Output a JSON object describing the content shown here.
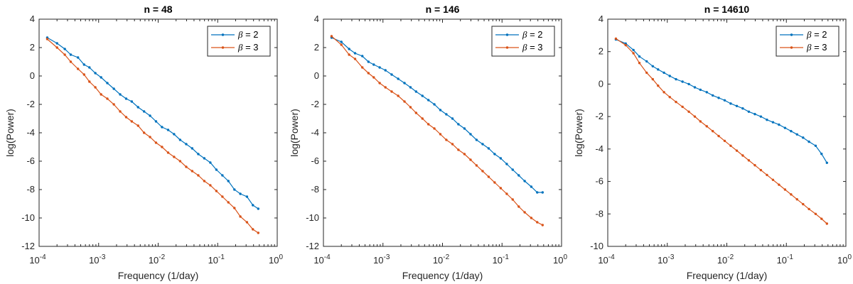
{
  "colors": {
    "beta2": "#0072BD",
    "beta3": "#D95319",
    "axis": "#262626"
  },
  "chart_data": [
    {
      "type": "line",
      "title": "n = 48",
      "xlabel": "Frequency (1/day)",
      "ylabel": "log(Power)",
      "xscale": "log",
      "xlim": [
        0.0001,
        1
      ],
      "ylim": [
        -12,
        4
      ],
      "xticks": [
        {
          "v": 0.0001,
          "base": "10",
          "exp": "-4"
        },
        {
          "v": 0.001,
          "base": "10",
          "exp": "-3"
        },
        {
          "v": 0.01,
          "base": "10",
          "exp": "-2"
        },
        {
          "v": 0.1,
          "base": "10",
          "exp": "-1"
        },
        {
          "v": 1,
          "base": "10",
          "exp": "0"
        }
      ],
      "yticks": [
        {
          "v": 4,
          "label": "4"
        },
        {
          "v": 2,
          "label": "2"
        },
        {
          "v": 0,
          "label": "0"
        },
        {
          "v": -2,
          "label": "-2"
        },
        {
          "v": -4,
          "label": "-4"
        },
        {
          "v": -6,
          "label": "-6"
        },
        {
          "v": -8,
          "label": "-8"
        },
        {
          "v": -10,
          "label": "-10"
        },
        {
          "v": -12,
          "label": "-12"
        }
      ],
      "legend": "top-right",
      "series": [
        {
          "name": "β = 2",
          "greek": "β",
          "rest": " = 2",
          "color": "#0072BD",
          "x": [
            0.000137,
            0.0002,
            0.00027,
            0.00034,
            0.00045,
            0.00057,
            0.0007,
            0.00088,
            0.0011,
            0.0014,
            0.0018,
            0.0023,
            0.0029,
            0.0036,
            0.0046,
            0.0058,
            0.0073,
            0.0092,
            0.0116,
            0.0147,
            0.0185,
            0.0234,
            0.0296,
            0.0373,
            0.0472,
            0.0596,
            0.0752,
            0.095,
            0.12,
            0.151,
            0.191,
            0.24,
            0.31,
            0.39,
            0.48
          ],
          "y": [
            2.7,
            2.3,
            1.9,
            1.5,
            1.3,
            0.8,
            0.6,
            0.2,
            -0.1,
            -0.5,
            -0.9,
            -1.3,
            -1.6,
            -1.8,
            -2.2,
            -2.5,
            -2.8,
            -3.2,
            -3.6,
            -3.8,
            -4.1,
            -4.5,
            -4.8,
            -5.1,
            -5.5,
            -5.8,
            -6.1,
            -6.6,
            -7.0,
            -7.4,
            -8.0,
            -8.3,
            -8.5,
            -9.1,
            -9.35
          ]
        },
        {
          "name": "β = 3",
          "greek": "β",
          "rest": " = 3",
          "color": "#D95319",
          "x": [
            0.000137,
            0.0002,
            0.00027,
            0.00034,
            0.00045,
            0.00057,
            0.0007,
            0.00088,
            0.0011,
            0.0014,
            0.0018,
            0.0023,
            0.0029,
            0.0036,
            0.0046,
            0.0058,
            0.0073,
            0.0092,
            0.0116,
            0.0147,
            0.0185,
            0.0234,
            0.0296,
            0.0373,
            0.0472,
            0.0596,
            0.0752,
            0.095,
            0.12,
            0.151,
            0.191,
            0.24,
            0.31,
            0.39,
            0.48
          ],
          "y": [
            2.6,
            2.0,
            1.5,
            1.0,
            0.5,
            0.1,
            -0.4,
            -0.8,
            -1.3,
            -1.6,
            -2.0,
            -2.5,
            -2.9,
            -3.2,
            -3.5,
            -4.0,
            -4.3,
            -4.7,
            -5.0,
            -5.4,
            -5.7,
            -6.0,
            -6.4,
            -6.7,
            -7.0,
            -7.4,
            -7.7,
            -8.1,
            -8.5,
            -8.9,
            -9.3,
            -9.9,
            -10.3,
            -10.8,
            -11.05
          ]
        }
      ]
    },
    {
      "type": "line",
      "title": "n = 146",
      "xlabel": "Frequency (1/day)",
      "ylabel": "log(Power)",
      "xscale": "log",
      "xlim": [
        0.0001,
        1
      ],
      "ylim": [
        -12,
        4
      ],
      "xticks": [
        {
          "v": 0.0001,
          "base": "10",
          "exp": "-4"
        },
        {
          "v": 0.001,
          "base": "10",
          "exp": "-3"
        },
        {
          "v": 0.01,
          "base": "10",
          "exp": "-2"
        },
        {
          "v": 0.1,
          "base": "10",
          "exp": "-1"
        },
        {
          "v": 1,
          "base": "10",
          "exp": "0"
        }
      ],
      "yticks": [
        {
          "v": 4,
          "label": "4"
        },
        {
          "v": 2,
          "label": "2"
        },
        {
          "v": 0,
          "label": "0"
        },
        {
          "v": -2,
          "label": "-2"
        },
        {
          "v": -4,
          "label": "-4"
        },
        {
          "v": -6,
          "label": "-6"
        },
        {
          "v": -8,
          "label": "-8"
        },
        {
          "v": -10,
          "label": "-10"
        },
        {
          "v": -12,
          "label": "-12"
        }
      ],
      "legend": "top-right",
      "series": [
        {
          "name": "β = 2",
          "greek": "β",
          "rest": " = 2",
          "color": "#0072BD",
          "x": [
            0.000137,
            0.0002,
            0.00027,
            0.00034,
            0.00045,
            0.00057,
            0.0007,
            0.00088,
            0.0011,
            0.0014,
            0.0018,
            0.0023,
            0.0029,
            0.0036,
            0.0046,
            0.0058,
            0.0073,
            0.0092,
            0.0116,
            0.0147,
            0.0185,
            0.0234,
            0.0296,
            0.0373,
            0.0472,
            0.0596,
            0.0752,
            0.095,
            0.12,
            0.151,
            0.191,
            0.24,
            0.31,
            0.39,
            0.48
          ],
          "y": [
            2.7,
            2.4,
            1.9,
            1.6,
            1.4,
            1.0,
            0.8,
            0.6,
            0.4,
            0.1,
            -0.2,
            -0.5,
            -0.8,
            -1.1,
            -1.4,
            -1.7,
            -2.0,
            -2.4,
            -2.7,
            -3.0,
            -3.4,
            -3.7,
            -4.1,
            -4.5,
            -4.8,
            -5.1,
            -5.5,
            -5.8,
            -6.2,
            -6.6,
            -7.0,
            -7.4,
            -7.8,
            -8.2,
            -8.2
          ]
        },
        {
          "name": "β = 3",
          "greek": "β",
          "rest": " = 3",
          "color": "#D95319",
          "x": [
            0.000137,
            0.0002,
            0.00027,
            0.00034,
            0.00045,
            0.00057,
            0.0007,
            0.00088,
            0.0011,
            0.0014,
            0.0018,
            0.0023,
            0.0029,
            0.0036,
            0.0046,
            0.0058,
            0.0073,
            0.0092,
            0.0116,
            0.0147,
            0.0185,
            0.0234,
            0.0296,
            0.0373,
            0.0472,
            0.0596,
            0.0752,
            0.095,
            0.12,
            0.151,
            0.191,
            0.24,
            0.31,
            0.39,
            0.48
          ],
          "y": [
            2.8,
            2.2,
            1.5,
            1.2,
            0.6,
            0.2,
            -0.1,
            -0.5,
            -0.8,
            -1.1,
            -1.4,
            -1.8,
            -2.2,
            -2.6,
            -3.0,
            -3.4,
            -3.7,
            -4.1,
            -4.5,
            -4.8,
            -5.2,
            -5.5,
            -5.9,
            -6.3,
            -6.7,
            -7.1,
            -7.5,
            -7.9,
            -8.3,
            -8.7,
            -9.2,
            -9.6,
            -10.0,
            -10.3,
            -10.5
          ]
        }
      ]
    },
    {
      "type": "line",
      "title": "n = 14610",
      "xlabel": "Frequency (1/day)",
      "ylabel": "log(Power)",
      "xscale": "log",
      "xlim": [
        0.0001,
        1
      ],
      "ylim": [
        -10,
        4
      ],
      "xticks": [
        {
          "v": 0.0001,
          "base": "10",
          "exp": "-4"
        },
        {
          "v": 0.001,
          "base": "10",
          "exp": "-3"
        },
        {
          "v": 0.01,
          "base": "10",
          "exp": "-2"
        },
        {
          "v": 0.1,
          "base": "10",
          "exp": "-1"
        },
        {
          "v": 1,
          "base": "10",
          "exp": "0"
        }
      ],
      "yticks": [
        {
          "v": 4,
          "label": "4"
        },
        {
          "v": 2,
          "label": "2"
        },
        {
          "v": 0,
          "label": "0"
        },
        {
          "v": -2,
          "label": "-2"
        },
        {
          "v": -4,
          "label": "-4"
        },
        {
          "v": -6,
          "label": "-6"
        },
        {
          "v": -8,
          "label": "-8"
        },
        {
          "v": -10,
          "label": "-10"
        }
      ],
      "legend": "top-right",
      "series": [
        {
          "name": "β = 2",
          "greek": "β",
          "rest": " = 2",
          "color": "#0072BD",
          "x": [
            0.000137,
            0.0002,
            0.00027,
            0.00034,
            0.00045,
            0.00057,
            0.0007,
            0.00088,
            0.0011,
            0.0014,
            0.0018,
            0.0023,
            0.0029,
            0.0036,
            0.0046,
            0.0058,
            0.0073,
            0.0092,
            0.0116,
            0.0147,
            0.0185,
            0.0234,
            0.0296,
            0.0373,
            0.0472,
            0.0596,
            0.0752,
            0.095,
            0.12,
            0.151,
            0.191,
            0.24,
            0.31,
            0.39,
            0.48
          ],
          "y": [
            2.75,
            2.5,
            2.1,
            1.7,
            1.4,
            1.1,
            0.9,
            0.7,
            0.5,
            0.3,
            0.15,
            0.0,
            -0.2,
            -0.35,
            -0.5,
            -0.7,
            -0.85,
            -1.0,
            -1.2,
            -1.35,
            -1.5,
            -1.7,
            -1.85,
            -2.0,
            -2.2,
            -2.35,
            -2.5,
            -2.7,
            -2.9,
            -3.1,
            -3.3,
            -3.55,
            -3.8,
            -4.3,
            -4.85
          ]
        },
        {
          "name": "β = 3",
          "greek": "β",
          "rest": " = 3",
          "color": "#D95319",
          "x": [
            0.000137,
            0.0002,
            0.00027,
            0.00034,
            0.00045,
            0.00057,
            0.0007,
            0.00088,
            0.0011,
            0.0014,
            0.0018,
            0.0023,
            0.0029,
            0.0036,
            0.0046,
            0.0058,
            0.0073,
            0.0092,
            0.0116,
            0.0147,
            0.0185,
            0.0234,
            0.0296,
            0.0373,
            0.0472,
            0.0596,
            0.0752,
            0.095,
            0.12,
            0.151,
            0.191,
            0.24,
            0.31,
            0.39,
            0.48
          ],
          "y": [
            2.8,
            2.4,
            1.9,
            1.3,
            0.7,
            0.3,
            -0.1,
            -0.5,
            -0.8,
            -1.1,
            -1.4,
            -1.7,
            -2.0,
            -2.3,
            -2.6,
            -2.9,
            -3.2,
            -3.5,
            -3.8,
            -4.1,
            -4.4,
            -4.7,
            -5.0,
            -5.3,
            -5.6,
            -5.9,
            -6.2,
            -6.5,
            -6.8,
            -7.1,
            -7.4,
            -7.7,
            -8.0,
            -8.3,
            -8.6
          ]
        }
      ]
    }
  ]
}
